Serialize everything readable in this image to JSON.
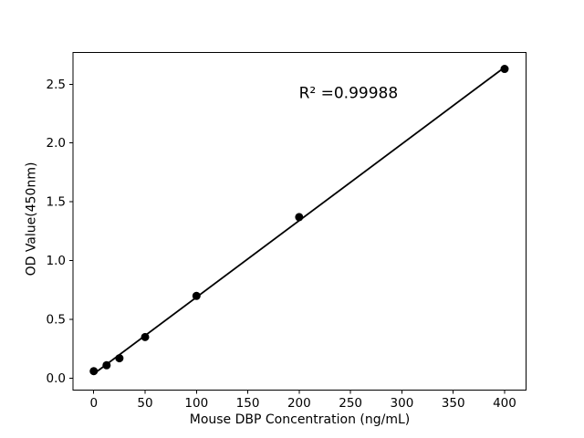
{
  "chart_data": {
    "type": "scatter",
    "title": "",
    "xlabel": "Mouse DBP Concentration (ng/mL)",
    "ylabel": "OD Value(450nm)",
    "series": [
      {
        "name": "standard-points",
        "x": [
          0,
          12.5,
          25,
          50,
          100,
          200,
          400
        ],
        "y": [
          0.06,
          0.11,
          0.17,
          0.35,
          0.7,
          1.37,
          2.63
        ],
        "marker": "filled-circle",
        "color": "#000000"
      }
    ],
    "fit_line": {
      "kind": "linear-regression",
      "x_range": [
        0,
        400
      ],
      "r_squared": 0.99988,
      "color": "#000000"
    },
    "annotation": {
      "text": "R² =0.99988",
      "x": 248,
      "y": 2.42
    },
    "xlim": [
      -20.2,
      420.9
    ],
    "ylim": [
      -0.101,
      2.77
    ],
    "x_ticks": {
      "values": [
        0,
        50,
        100,
        150,
        200,
        250,
        300,
        350,
        400
      ],
      "labels": [
        "0",
        "50",
        "100",
        "150",
        "200",
        "250",
        "300",
        "350",
        "400"
      ]
    },
    "y_ticks": {
      "values": [
        0,
        0.5,
        1.0,
        1.5,
        2.0,
        2.5
      ],
      "labels": [
        "0.0",
        "0.5",
        "1.0",
        "1.5",
        "2.0",
        "2.5"
      ]
    },
    "grid": false,
    "legend": "none",
    "axis_color": "#000000",
    "background": "#ffffff"
  }
}
